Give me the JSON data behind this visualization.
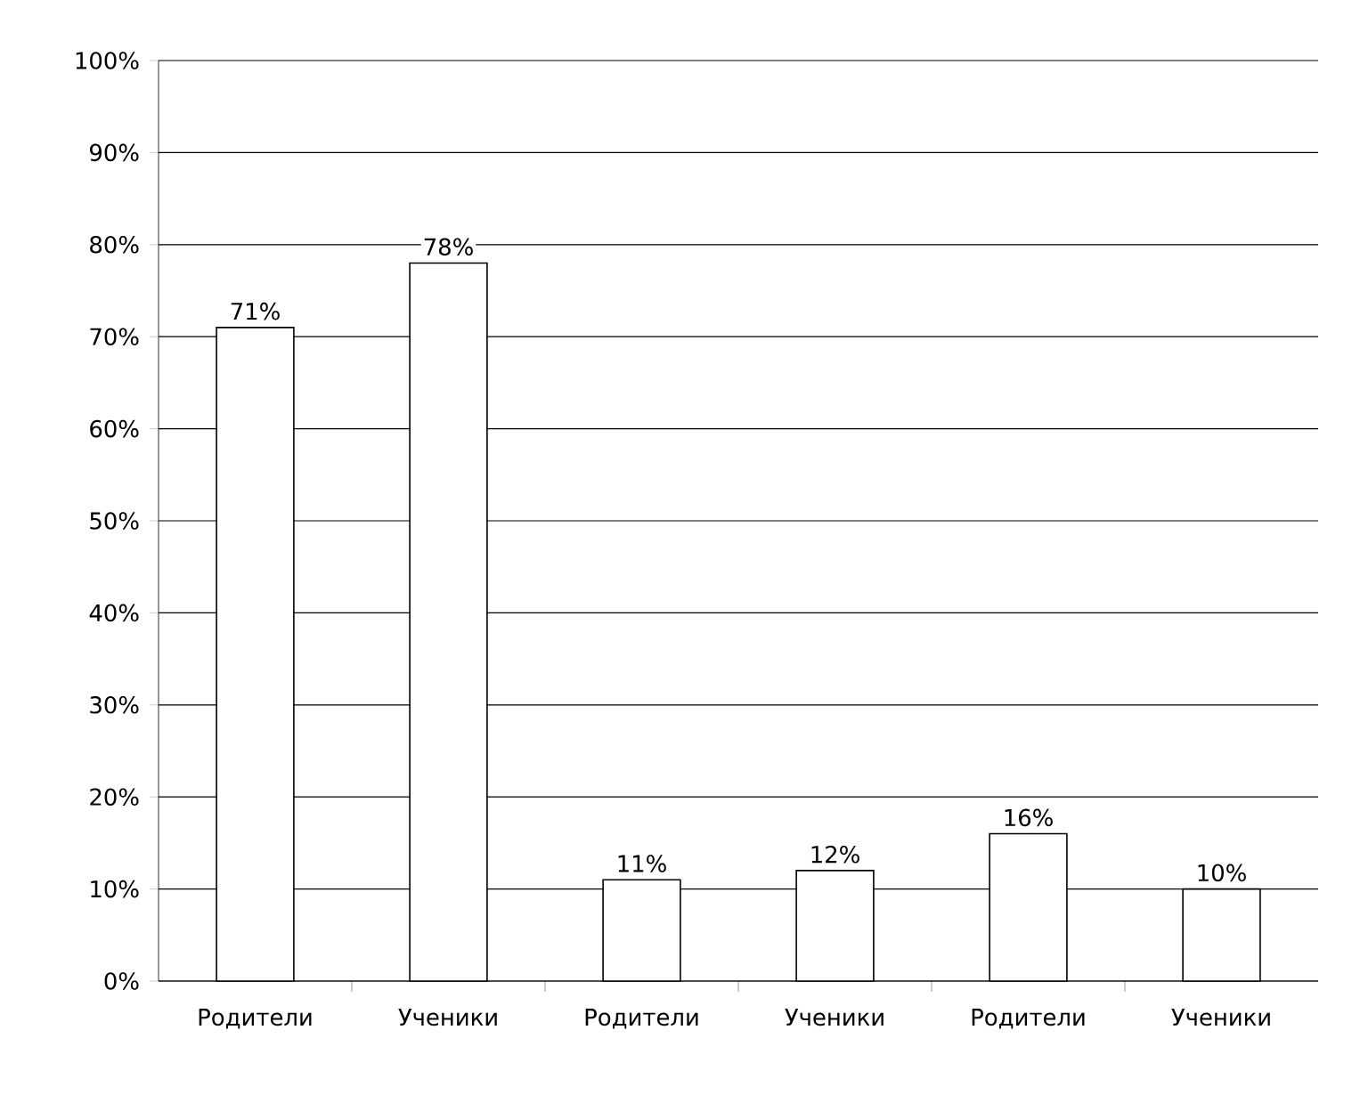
{
  "chart_data": {
    "type": "bar",
    "categories": [
      "Родители",
      "Ученики",
      "Родители",
      "Ученики",
      "Родители",
      "Ученики"
    ],
    "values": [
      71,
      78,
      11,
      12,
      16,
      10
    ],
    "value_labels": [
      "71%",
      "78%",
      "11%",
      "12%",
      "16%",
      "10%"
    ],
    "color": "#ffffff",
    "ylim": [
      0,
      100
    ],
    "yticks": [
      {
        "value": 0,
        "label": "0%"
      },
      {
        "value": 10,
        "label": "10%"
      },
      {
        "value": 20,
        "label": "20%"
      },
      {
        "value": 30,
        "label": "30%"
      },
      {
        "value": 40,
        "label": "40%"
      },
      {
        "value": 50,
        "label": "50%"
      },
      {
        "value": 60,
        "label": "60%"
      },
      {
        "value": 70,
        "label": "70%"
      },
      {
        "value": 80,
        "label": "80%"
      },
      {
        "value": 90,
        "label": "90%"
      },
      {
        "value": 100,
        "label": "100%"
      }
    ],
    "grid": "y"
  }
}
